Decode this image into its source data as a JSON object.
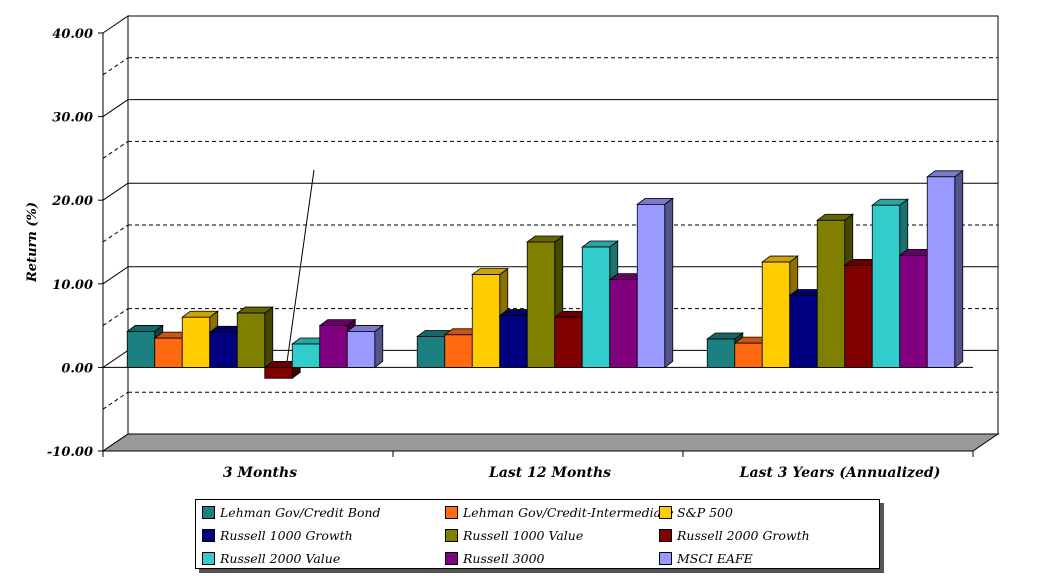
{
  "chart_data": {
    "type": "bar",
    "title": "",
    "xlabel": "",
    "ylabel": "Return (%)",
    "ylim": [
      -10,
      40
    ],
    "yticks": [
      "-10.00",
      "0.00",
      "10.00",
      "20.00",
      "30.00",
      "40.00"
    ],
    "grid": "solid at 10s, dashed at 5s",
    "legend_position": "bottom",
    "categories": [
      "3 Months",
      "Last 12 Months",
      "Last 3 Years (Annualized)"
    ],
    "series": [
      {
        "name": "Lehman Gov/Credit Bond",
        "color": "#1a8080",
        "values": [
          4.3,
          3.7,
          3.4
        ]
      },
      {
        "name": "Lehman Gov/Credit-Intermediate",
        "color": "#ff6a10",
        "values": [
          3.5,
          3.9,
          2.9
        ]
      },
      {
        "name": "S&P 500",
        "color": "#ffcc00",
        "values": [
          6.0,
          11.1,
          12.6
        ]
      },
      {
        "name": "Russell 1000 Growth",
        "color": "#000080",
        "values": [
          4.2,
          6.2,
          8.6
        ]
      },
      {
        "name": "Russell 1000 Value",
        "color": "#808000",
        "values": [
          6.5,
          15.0,
          17.6
        ]
      },
      {
        "name": "Russell 2000 Growth",
        "color": "#800000",
        "values": [
          -1.3,
          6.0,
          12.2
        ]
      },
      {
        "name": "Russell 2000 Value",
        "color": "#33cccc",
        "values": [
          2.8,
          14.4,
          19.4
        ]
      },
      {
        "name": "Russell 3000",
        "color": "#800080",
        "values": [
          5.0,
          10.5,
          13.4
        ]
      },
      {
        "name": "MSCI EAFE",
        "color": "#9999ff",
        "values": [
          4.3,
          19.5,
          22.8
        ]
      }
    ]
  }
}
